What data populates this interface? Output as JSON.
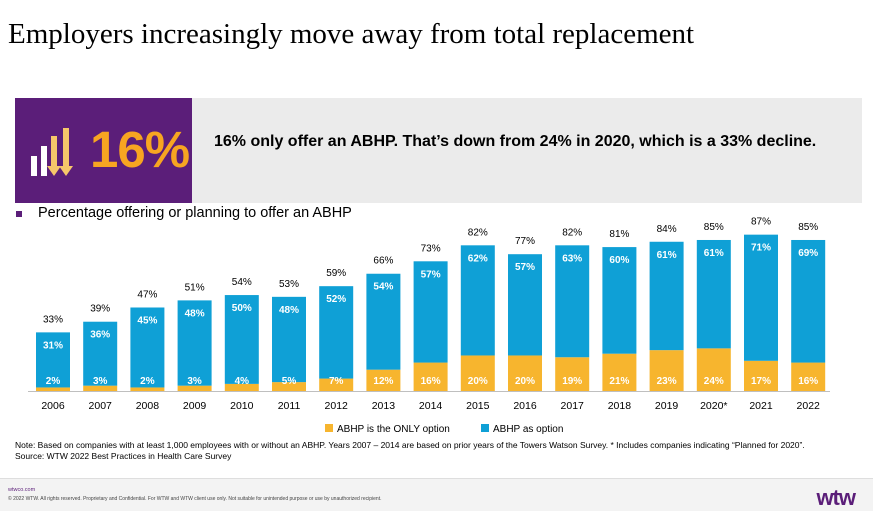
{
  "slide": {
    "title": "Employers increasingly move away from total replacement"
  },
  "banner": {
    "stat": "16%",
    "text": "16% only offer an ABHP.  That’s down from 24% in 2020, which is a 33% decline."
  },
  "chart_title": "Percentage offering or planning to offer an ABHP",
  "chart_data": {
    "type": "bar",
    "stacked": true,
    "title": "Percentage offering or planning to offer an ABHP",
    "categories": [
      "2006",
      "2007",
      "2008",
      "2009",
      "2010",
      "2011",
      "2012",
      "2013",
      "2014",
      "2015",
      "2016",
      "2017",
      "2018",
      "2019",
      "2020*",
      "2021",
      "2022"
    ],
    "series": [
      {
        "name": "ABHP is the ONLY option",
        "color": "#f7b52e",
        "values": [
          2,
          3,
          2,
          3,
          4,
          5,
          7,
          12,
          16,
          20,
          20,
          19,
          21,
          23,
          24,
          17,
          16
        ],
        "labels": [
          "2%",
          "3%",
          "2%",
          "3%",
          "4%",
          "5%",
          "7%",
          "12%",
          "16%",
          "20%",
          "20%",
          "19%",
          "21%",
          "23%",
          "24%",
          "17%",
          "16%"
        ]
      },
      {
        "name": "ABHP as option",
        "color": "#0fa0d6",
        "values": [
          31,
          36,
          45,
          48,
          50,
          48,
          52,
          54,
          57,
          62,
          57,
          63,
          60,
          61,
          61,
          71,
          69
        ],
        "labels": [
          "31%",
          "36%",
          "45%",
          "48%",
          "50%",
          "48%",
          "52%",
          "54%",
          "57%",
          "62%",
          "57%",
          "63%",
          "60%",
          "61%",
          "61%",
          "71%",
          "69%"
        ]
      }
    ],
    "totals": [
      33,
      39,
      47,
      51,
      54,
      53,
      59,
      66,
      73,
      82,
      77,
      82,
      81,
      84,
      85,
      87,
      85
    ],
    "total_labels": [
      "33%",
      "39%",
      "47%",
      "51%",
      "54%",
      "53%",
      "59%",
      "66%",
      "73%",
      "82%",
      "77%",
      "82%",
      "81%",
      "84%",
      "85%",
      "87%",
      "85%"
    ],
    "ylim": [
      0,
      90
    ],
    "xlabel": "",
    "ylabel": "",
    "grid": false,
    "legend": "bottom"
  },
  "footnote": {
    "line1": "Note: Based on companies with at least 1,000 employees with or without an ABHP. Years 2007 – 2014 are based on prior years of the Towers Watson Survey. * Includes companies indicating “Planned for 2020”.",
    "source": "Source: WTW 2022 Best Practices in Health Care Survey"
  },
  "footer": {
    "link": "wtwco.com",
    "legal": "© 2022 WTW. All rights reserved. Proprietary and Confidential. For WTW and WTW client use only. Not suitable for unintended purpose or use by unauthorized recipient.",
    "logo": "wtw"
  }
}
